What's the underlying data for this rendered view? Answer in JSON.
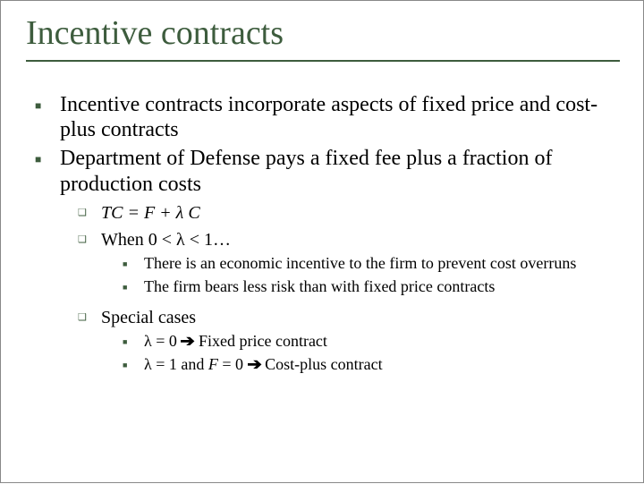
{
  "colors": {
    "title": "#3d5c3d",
    "bullet": "#3d5c3d",
    "text": "#000000",
    "background": "#ffffff",
    "rule": "#3d5c3d"
  },
  "typography": {
    "family": "Times New Roman",
    "title_size_pt": 38,
    "lvl1_size_pt": 24,
    "lvl2_size_pt": 20,
    "lvl3_size_pt": 18
  },
  "title": "Incentive contracts",
  "bullets": [
    {
      "level": 1,
      "text": "Incentive contracts incorporate aspects of fixed price and cost-plus contracts"
    },
    {
      "level": 1,
      "text": "Department of Defense pays a fixed fee plus a fraction of production costs"
    },
    {
      "level": 2,
      "italic": true,
      "text": "TC = F + λ C"
    },
    {
      "level": 2,
      "text": "When 0 < λ < 1…"
    },
    {
      "level": 3,
      "text": "There is an economic incentive to the firm to prevent cost overruns"
    },
    {
      "level": 3,
      "text": "The firm bears less risk than with fixed price contracts"
    },
    {
      "level": 2,
      "text": "Special cases"
    },
    {
      "level": 3,
      "text_prefix": "λ = 0 ",
      "arrow": "➔",
      "text_suffix": "  Fixed price contract"
    },
    {
      "level": 3,
      "text_prefix": "λ = 1 and ",
      "italic_span": "F",
      "text_mid": " = 0 ",
      "arrow": "➔",
      "text_suffix": " Cost-plus contract"
    }
  ],
  "glyphs": {
    "square_filled": "■",
    "square_outline": "❑",
    "arrow_right": "➔"
  }
}
